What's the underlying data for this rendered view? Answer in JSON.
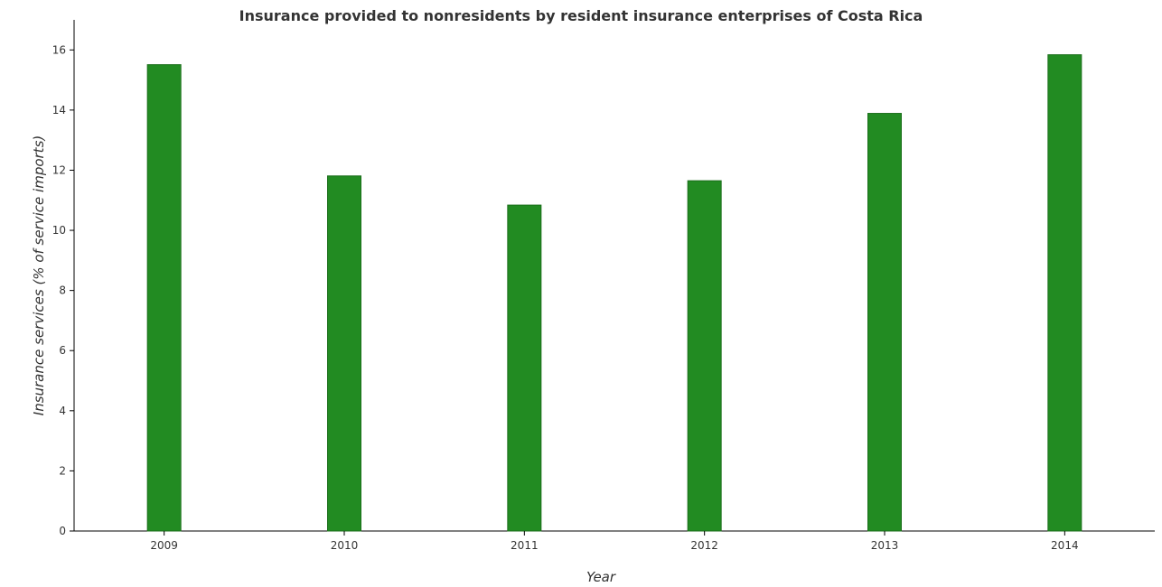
{
  "chart_data": {
    "type": "bar",
    "title": "Insurance provided to nonresidents by resident insurance enterprises of Costa Rica",
    "xlabel": "Year",
    "ylabel": "Insurance services (% of service imports)",
    "categories": [
      "2009",
      "2010",
      "2011",
      "2012",
      "2013",
      "2014"
    ],
    "values": [
      15.51,
      11.81,
      10.84,
      11.65,
      13.89,
      15.84
    ],
    "ylim": [
      0,
      17
    ],
    "yticks": [
      0,
      2,
      4,
      6,
      8,
      10,
      12,
      14,
      16
    ],
    "grid": false,
    "legend": "none",
    "colors": {
      "bar": "#228b22",
      "bar_stroke": "#1a6e1a",
      "axis": "#000000",
      "text": "#333333"
    }
  }
}
